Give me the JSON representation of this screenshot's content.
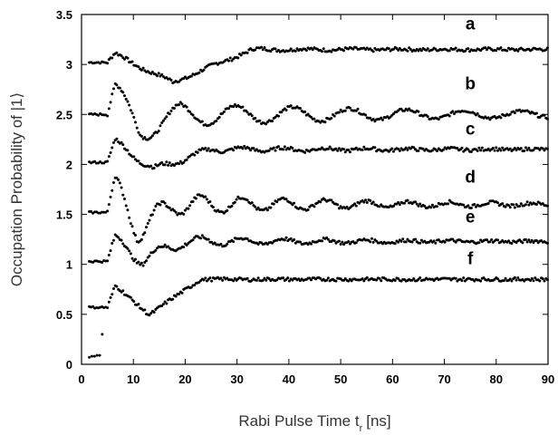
{
  "chart_data": {
    "type": "scatter",
    "xlabel": "Rabi Pulse Time t",
    "xlabel_subscript": "r",
    "xlabel_unit": "[ns]",
    "ylabel": "Occupation Probability of |1⟩",
    "xlim": [
      0,
      90
    ],
    "ylim": [
      0,
      3.5
    ],
    "xticks": [
      0,
      10,
      20,
      30,
      40,
      50,
      60,
      70,
      80,
      90
    ],
    "yticks": [
      0,
      0.5,
      1,
      1.5,
      2,
      2.5,
      3,
      3.5
    ],
    "grid": false,
    "series": [
      {
        "name": "a",
        "label_x": 75,
        "label_y": 3.35,
        "baseline": 3.02,
        "start": 5,
        "peak": 3.1,
        "dip": 2.82,
        "final": 3.15,
        "amp": 0.02,
        "period": 9,
        "tau": 40,
        "settle": 28
      },
      {
        "name": "b",
        "label_x": 75,
        "label_y": 2.75,
        "baseline": 2.5,
        "start": 5,
        "peak": 2.7,
        "dip": 2.35,
        "final": 2.5,
        "amp": 0.14,
        "period": 11,
        "tau": 55,
        "settle": 14
      },
      {
        "name": "c",
        "label_x": 75,
        "label_y": 2.3,
        "baseline": 2.02,
        "start": 5,
        "peak": 2.22,
        "dip": 1.95,
        "final": 2.15,
        "amp": 0.04,
        "period": 8,
        "tau": 40,
        "settle": 20
      },
      {
        "name": "d",
        "label_x": 75,
        "label_y": 1.82,
        "baseline": 1.52,
        "start": 5,
        "peak": 1.75,
        "dip": 1.35,
        "final": 1.6,
        "amp": 0.15,
        "period": 8,
        "tau": 35,
        "settle": 13
      },
      {
        "name": "e",
        "label_x": 75,
        "label_y": 1.42,
        "baseline": 1.03,
        "start": 5,
        "peak": 1.22,
        "dip": 1.05,
        "final": 1.23,
        "amp": 0.08,
        "period": 8,
        "tau": 30,
        "settle": 15
      },
      {
        "name": "f",
        "label_x": 75,
        "label_y": 1.0,
        "baseline": 0.57,
        "start": 5,
        "peak": 0.78,
        "dip": 0.5,
        "final": 0.85,
        "amp": 0.01,
        "period": 10,
        "tau": 20,
        "settle": 18
      }
    ],
    "extra_points": [
      {
        "x": 1.5,
        "y": 0.07
      },
      {
        "x": 2.0,
        "y": 0.08
      },
      {
        "x": 2.5,
        "y": 0.08
      },
      {
        "x": 3.0,
        "y": 0.09
      },
      {
        "x": 3.5,
        "y": 0.09
      },
      {
        "x": 4.0,
        "y": 0.3
      }
    ]
  }
}
